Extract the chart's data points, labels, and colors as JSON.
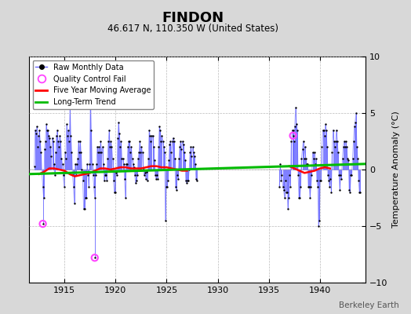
{
  "title": "FINDON",
  "subtitle": "46.617 N, 110.350 W (United States)",
  "ylabel": "Temperature Anomaly (°C)",
  "watermark": "Berkeley Earth",
  "xlim": [
    1911.5,
    1944.5
  ],
  "ylim": [
    -10,
    10
  ],
  "xticks": [
    1915,
    1920,
    1925,
    1930,
    1935,
    1940
  ],
  "yticks": [
    -10,
    -5,
    0,
    5,
    10
  ],
  "background_color": "#d8d8d8",
  "plot_bg_color": "#ffffff",
  "raw_color": "#6666ff",
  "dot_color": "#000000",
  "qc_color": "#ff44ff",
  "moving_avg_color": "#ff0000",
  "trend_color": "#00bb00",
  "raw_data": {
    "years": [
      1912.042,
      1912.125,
      1912.208,
      1912.292,
      1912.375,
      1912.458,
      1912.542,
      1912.625,
      1912.708,
      1912.792,
      1912.875,
      1912.958,
      1913.042,
      1913.125,
      1913.208,
      1913.292,
      1913.375,
      1913.458,
      1913.542,
      1913.625,
      1913.708,
      1913.792,
      1913.875,
      1913.958,
      1914.042,
      1914.125,
      1914.208,
      1914.292,
      1914.375,
      1914.458,
      1914.542,
      1914.625,
      1914.708,
      1914.792,
      1914.875,
      1914.958,
      1915.042,
      1915.125,
      1915.208,
      1915.292,
      1915.375,
      1915.458,
      1915.542,
      1915.625,
      1915.708,
      1915.792,
      1915.875,
      1915.958,
      1916.042,
      1916.125,
      1916.208,
      1916.292,
      1916.375,
      1916.458,
      1916.542,
      1916.625,
      1916.708,
      1916.792,
      1916.875,
      1916.958,
      1917.042,
      1917.125,
      1917.208,
      1917.292,
      1917.375,
      1917.458,
      1917.542,
      1917.625,
      1917.708,
      1917.792,
      1917.875,
      1917.958,
      1918.042,
      1918.125,
      1918.208,
      1918.292,
      1918.375,
      1918.458,
      1918.542,
      1918.625,
      1918.708,
      1918.792,
      1918.875,
      1918.958,
      1919.042,
      1919.125,
      1919.208,
      1919.292,
      1919.375,
      1919.458,
      1919.542,
      1919.625,
      1919.708,
      1919.792,
      1919.875,
      1919.958,
      1920.042,
      1920.125,
      1920.208,
      1920.292,
      1920.375,
      1920.458,
      1920.542,
      1920.625,
      1920.708,
      1920.792,
      1920.875,
      1920.958,
      1921.042,
      1921.125,
      1921.208,
      1921.292,
      1921.375,
      1921.458,
      1921.542,
      1921.625,
      1921.708,
      1921.792,
      1921.875,
      1921.958,
      1922.042,
      1922.125,
      1922.208,
      1922.292,
      1922.375,
      1922.458,
      1922.542,
      1922.625,
      1922.708,
      1922.792,
      1922.875,
      1922.958,
      1923.042,
      1923.125,
      1923.208,
      1923.292,
      1923.375,
      1923.458,
      1923.542,
      1923.625,
      1923.708,
      1923.792,
      1923.875,
      1923.958,
      1924.042,
      1924.125,
      1924.208,
      1924.292,
      1924.375,
      1924.458,
      1924.542,
      1924.625,
      1924.708,
      1924.792,
      1924.875,
      1924.958,
      1925.042,
      1925.125,
      1925.208,
      1925.292,
      1925.375,
      1925.458,
      1925.542,
      1925.625,
      1925.708,
      1925.792,
      1925.875,
      1925.958,
      1926.042,
      1926.125,
      1926.208,
      1926.292,
      1926.375,
      1926.458,
      1926.542,
      1926.625,
      1926.708,
      1926.792,
      1926.875,
      1926.958,
      1927.042,
      1927.125,
      1927.208,
      1927.292,
      1927.375,
      1927.458,
      1927.542,
      1927.625,
      1927.708,
      1927.792,
      1927.875,
      1927.958,
      1936.042,
      1936.125,
      1936.208,
      1936.292,
      1936.375,
      1936.458,
      1936.542,
      1936.625,
      1936.708,
      1936.792,
      1936.875,
      1936.958,
      1937.042,
      1937.125,
      1937.208,
      1937.292,
      1937.375,
      1937.458,
      1937.542,
      1937.625,
      1937.708,
      1937.792,
      1937.875,
      1937.958,
      1938.042,
      1938.125,
      1938.208,
      1938.292,
      1938.375,
      1938.458,
      1938.542,
      1938.625,
      1938.708,
      1938.792,
      1938.875,
      1938.958,
      1939.042,
      1939.125,
      1939.208,
      1939.292,
      1939.375,
      1939.458,
      1939.542,
      1939.625,
      1939.708,
      1939.792,
      1939.875,
      1939.958,
      1940.042,
      1940.125,
      1940.208,
      1940.292,
      1940.375,
      1940.458,
      1940.542,
      1940.625,
      1940.708,
      1940.792,
      1940.875,
      1940.958,
      1941.042,
      1941.125,
      1941.208,
      1941.292,
      1941.375,
      1941.458,
      1941.542,
      1941.625,
      1941.708,
      1941.792,
      1941.875,
      1941.958,
      1942.042,
      1942.125,
      1942.208,
      1942.292,
      1942.375,
      1942.458,
      1942.542,
      1942.625,
      1942.708,
      1942.792,
      1942.875,
      1942.958,
      1943.042,
      1943.125,
      1943.208,
      1943.292,
      1943.375,
      1943.458,
      1943.542,
      1943.625,
      1943.708,
      1943.792,
      1943.875,
      1943.958
    ],
    "values": [
      0.3,
      3.5,
      3.2,
      3.8,
      2.0,
      3.0,
      3.5,
      2.5,
      1.5,
      -0.3,
      -1.5,
      -2.5,
      1.8,
      2.5,
      4.0,
      3.5,
      3.5,
      3.0,
      2.8,
      2.0,
      1.2,
      2.8,
      2.5,
      0.5,
      -0.5,
      1.5,
      3.0,
      3.5,
      2.5,
      2.0,
      3.0,
      2.5,
      1.0,
      0.5,
      -0.5,
      -1.5,
      1.5,
      1.0,
      4.0,
      3.0,
      3.5,
      2.5,
      5.5,
      3.0,
      1.5,
      -0.5,
      -1.5,
      -3.0,
      0.5,
      -0.5,
      0.5,
      1.0,
      2.5,
      1.5,
      2.5,
      1.5,
      0.0,
      -1.0,
      -3.5,
      -3.5,
      -2.5,
      -2.5,
      0.5,
      -0.5,
      -1.5,
      0.5,
      6.5,
      3.5,
      0.5,
      -0.5,
      -1.5,
      -2.5,
      -0.5,
      0.5,
      2.0,
      1.5,
      2.0,
      1.5,
      2.5,
      1.5,
      2.0,
      0.5,
      -1.0,
      -0.5,
      -0.5,
      -1.0,
      1.0,
      2.5,
      3.5,
      2.0,
      2.5,
      2.0,
      1.0,
      -1.0,
      -2.0,
      -2.0,
      -0.3,
      -0.5,
      2.8,
      4.2,
      3.2,
      2.0,
      2.5,
      1.0,
      1.0,
      0.5,
      -0.8,
      -2.5,
      0.5,
      0.5,
      2.0,
      2.5,
      2.5,
      1.5,
      2.0,
      1.0,
      0.5,
      0.2,
      -0.5,
      -1.2,
      -1.0,
      -0.5,
      1.0,
      1.5,
      2.5,
      1.5,
      2.0,
      1.5,
      0.0,
      -0.5,
      -0.3,
      -0.8,
      -0.2,
      -1.0,
      1.0,
      3.5,
      3.0,
      2.5,
      3.0,
      3.0,
      2.0,
      0.8,
      -0.5,
      -0.8,
      -0.5,
      -0.8,
      2.0,
      3.8,
      3.5,
      2.5,
      3.0,
      2.5,
      2.0,
      1.5,
      -4.5,
      -1.5,
      -1.5,
      -1.0,
      0.8,
      2.2,
      2.5,
      1.5,
      2.5,
      2.8,
      2.5,
      1.0,
      -1.5,
      -1.8,
      -0.5,
      -0.8,
      1.0,
      2.0,
      2.5,
      1.8,
      2.5,
      2.2,
      1.5,
      0.8,
      -1.0,
      -1.2,
      -1.0,
      -1.0,
      0.0,
      1.5,
      2.0,
      1.2,
      2.0,
      1.5,
      1.2,
      0.5,
      -0.8,
      -1.0,
      -1.5,
      0.5,
      -1.0,
      -0.5,
      -1.5,
      -1.8,
      -2.5,
      -1.0,
      -2.0,
      -2.0,
      -3.5,
      -2.5,
      -0.5,
      -1.5,
      2.5,
      3.5,
      3.5,
      2.5,
      3.8,
      5.5,
      4.0,
      3.5,
      -0.5,
      -2.5,
      -2.5,
      -1.5,
      1.0,
      1.8,
      2.5,
      1.0,
      2.0,
      1.0,
      0.5,
      0.5,
      -1.5,
      -1.5,
      -2.5,
      -1.5,
      -0.5,
      1.5,
      1.0,
      1.5,
      0.5,
      1.0,
      -1.0,
      -1.5,
      -5.0,
      -4.5,
      -1.0,
      -1.0,
      2.0,
      3.5,
      3.5,
      3.0,
      4.0,
      3.5,
      2.0,
      -0.5,
      -1.0,
      -1.5,
      -0.8,
      -2.0,
      1.5,
      3.5,
      2.5,
      2.0,
      2.5,
      3.5,
      2.5,
      1.5,
      -0.5,
      -1.8,
      -0.5,
      -0.8,
      1.0,
      2.0,
      2.5,
      2.0,
      2.5,
      2.0,
      1.0,
      0.8,
      -1.8,
      -2.0,
      -0.5,
      -0.5,
      1.0,
      2.5,
      3.8,
      4.2,
      5.0,
      2.0,
      1.0,
      -1.0,
      -2.0,
      -2.0
    ]
  },
  "qc_fails": [
    {
      "year": 1912.875,
      "value": -4.8
    },
    {
      "year": 1917.958,
      "value": -7.8
    },
    {
      "year": 1937.375,
      "value": 3.0
    }
  ],
  "moving_avg_x": [
    1912.5,
    1913.0,
    1913.5,
    1914.0,
    1914.5,
    1915.0,
    1915.5,
    1916.0,
    1916.5,
    1917.0,
    1917.5,
    1918.0,
    1918.5,
    1919.0,
    1919.5,
    1920.0,
    1920.5,
    1921.0,
    1921.5,
    1922.0,
    1922.5,
    1923.0,
    1923.5,
    1924.0,
    1924.5,
    1925.0,
    1925.5,
    1926.0,
    1926.5,
    1927.0,
    1937.0,
    1937.5,
    1938.0,
    1938.5,
    1939.0,
    1939.5,
    1940.0,
    1940.5,
    1941.0
  ],
  "moving_avg_y": [
    -0.4,
    -0.2,
    0.1,
    0.1,
    0.0,
    -0.1,
    -0.4,
    -0.6,
    -0.5,
    -0.4,
    -0.3,
    -0.1,
    0.1,
    0.1,
    0.0,
    0.1,
    0.2,
    0.2,
    0.1,
    0.1,
    0.1,
    0.2,
    0.3,
    0.3,
    0.2,
    0.2,
    0.1,
    0.0,
    -0.1,
    -0.1,
    0.3,
    0.1,
    -0.1,
    -0.3,
    -0.2,
    -0.1,
    0.1,
    0.2,
    0.1
  ],
  "trend_x": [
    1911.5,
    1944.5
  ],
  "trend_y": [
    -0.4,
    0.5
  ]
}
